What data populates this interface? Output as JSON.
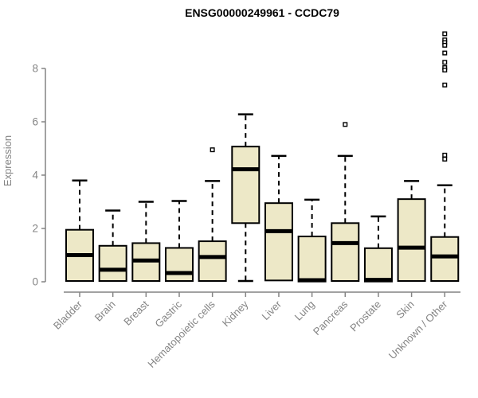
{
  "chart_data": {
    "type": "boxplot",
    "title": "ENSG00000249961 - CCDC79",
    "ylabel": "Expression",
    "xlabel": "",
    "ylim": [
      0,
      8
    ],
    "yticks": [
      0,
      2,
      4,
      6,
      8
    ],
    "grid": false,
    "legend": "none",
    "box_fill_color": "#EDE8C7",
    "box_stroke_color": "#000000",
    "axis_color": "#848484",
    "categories": [
      "Bladder",
      "Brain",
      "Breast",
      "Gastric",
      "Hematopoietic cells",
      "Kidney",
      "Liver",
      "Lung",
      "Pancreas",
      "Prostate",
      "Skin",
      "Unknown / Other"
    ],
    "boxes": [
      {
        "label": "Bladder",
        "whisker_low": 0.03,
        "q1": 0.03,
        "median": 1.0,
        "q3": 1.95,
        "whisker_high": 3.8,
        "outliers": []
      },
      {
        "label": "Brain",
        "whisker_low": 0.03,
        "q1": 0.03,
        "median": 0.45,
        "q3": 1.35,
        "whisker_high": 2.67,
        "outliers": []
      },
      {
        "label": "Breast",
        "whisker_low": 0.03,
        "q1": 0.03,
        "median": 0.8,
        "q3": 1.45,
        "whisker_high": 3.0,
        "outliers": []
      },
      {
        "label": "Gastric",
        "whisker_low": 0.03,
        "q1": 0.03,
        "median": 0.33,
        "q3": 1.27,
        "whisker_high": 3.03,
        "outliers": []
      },
      {
        "label": "Hematopoietic cells",
        "whisker_low": 0.03,
        "q1": 0.03,
        "median": 0.93,
        "q3": 1.52,
        "whisker_high": 3.78,
        "outliers": [
          4.95
        ]
      },
      {
        "label": "Kidney",
        "whisker_low": 0.03,
        "q1": 2.2,
        "median": 4.22,
        "q3": 5.07,
        "whisker_high": 6.28,
        "outliers": []
      },
      {
        "label": "Liver",
        "whisker_low": 0.05,
        "q1": 0.05,
        "median": 1.9,
        "q3": 2.95,
        "whisker_high": 4.72,
        "outliers": []
      },
      {
        "label": "Lung",
        "whisker_low": 0.01,
        "q1": 0.01,
        "median": 0.06,
        "q3": 1.7,
        "whisker_high": 3.08,
        "outliers": []
      },
      {
        "label": "Pancreas",
        "whisker_low": 0.03,
        "q1": 0.03,
        "median": 1.45,
        "q3": 2.2,
        "whisker_high": 4.72,
        "outliers": [
          5.9
        ]
      },
      {
        "label": "Prostate",
        "whisker_low": 0.01,
        "q1": 0.01,
        "median": 0.07,
        "q3": 1.26,
        "whisker_high": 2.45,
        "outliers": []
      },
      {
        "label": "Skin",
        "whisker_low": 0.03,
        "q1": 0.03,
        "median": 1.28,
        "q3": 3.1,
        "whisker_high": 3.78,
        "outliers": []
      },
      {
        "label": "Unknown / Other",
        "whisker_low": 0.03,
        "q1": 0.03,
        "median": 0.95,
        "q3": 1.68,
        "whisker_high": 3.62,
        "outliers": [
          9.3,
          9.07,
          8.97,
          8.87,
          8.58,
          8.23,
          8.03,
          7.94,
          7.38,
          4.75,
          4.6
        ]
      }
    ]
  }
}
